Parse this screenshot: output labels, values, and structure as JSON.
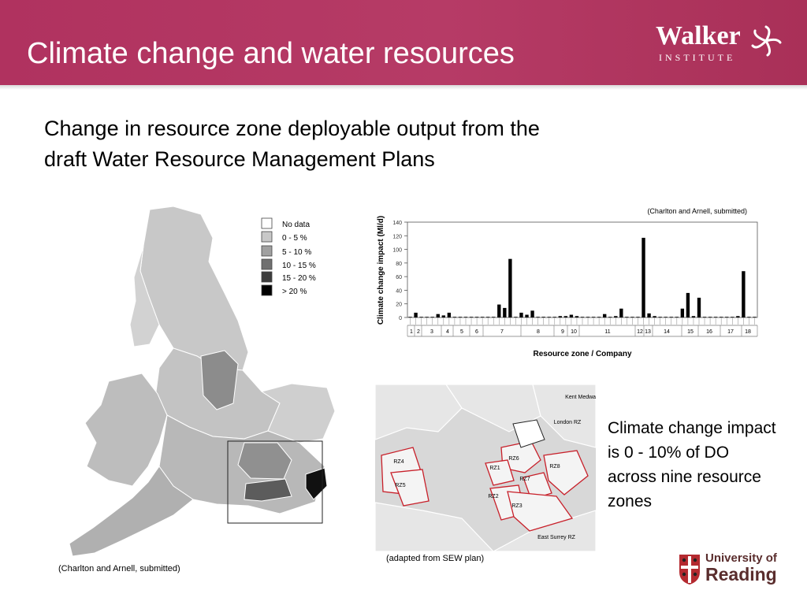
{
  "slide": {
    "title": "Climate change and water resources",
    "heading": "Change in resource zone deployable output from the draft Water Resource Management Plans",
    "note": "Climate change impact is 0 - 10% of DO across nine resource zones"
  },
  "logo": {
    "word": "Walker",
    "sub": "INSTITUTE"
  },
  "university": {
    "line1": "University of",
    "line2": "Reading"
  },
  "map": {
    "caption": "(Charlton and Arnell, submitted)",
    "legend": [
      {
        "label": "No data",
        "color": "#ffffff"
      },
      {
        "label": "0 - 5 %",
        "color": "#c8c8c8"
      },
      {
        "label": "5 - 10 %",
        "color": "#a0a0a0"
      },
      {
        "label": "10 - 15 %",
        "color": "#707070"
      },
      {
        "label": "15 - 20 %",
        "color": "#3c3c3c"
      },
      {
        "label": "> 20 %",
        "color": "#000000"
      }
    ]
  },
  "zones_map": {
    "caption": "(adapted from SEW plan)",
    "labels": [
      "Kent Medway RZ",
      "London RZ",
      "East Surrey RZ",
      "RZ4",
      "RZ5",
      "RZ6",
      "RZ7",
      "RZ8",
      "RZ1",
      "RZ2",
      "RZ3"
    ]
  },
  "chart_data": {
    "type": "bar",
    "caption": "(Charlton and Arnell, submitted)",
    "ylabel": "Climate change impact (Ml/d)",
    "xlabel": "Resource zone / Company",
    "ylim": [
      0,
      140
    ],
    "yticks": [
      0,
      20,
      40,
      60,
      80,
      100,
      120,
      140
    ],
    "company_labels": [
      "1",
      "2",
      "3",
      "4",
      "5",
      "6",
      "7",
      "8",
      "9",
      "10",
      "11",
      "12",
      "13",
      "14",
      "15",
      "16",
      "17",
      "18"
    ],
    "values": [
      0,
      7,
      0,
      0,
      0,
      5,
      3,
      7,
      0,
      0,
      0,
      0,
      0,
      0,
      0,
      0,
      19,
      14,
      86,
      0,
      7,
      4,
      10,
      0,
      1,
      0,
      0,
      2,
      2,
      4,
      2,
      0,
      0,
      0,
      0,
      5,
      0,
      2,
      13,
      0,
      0,
      0,
      117,
      6,
      2,
      0,
      0,
      0,
      0,
      13,
      36,
      2,
      29,
      0,
      0,
      0,
      0,
      0,
      0,
      2,
      68,
      0,
      0
    ]
  }
}
